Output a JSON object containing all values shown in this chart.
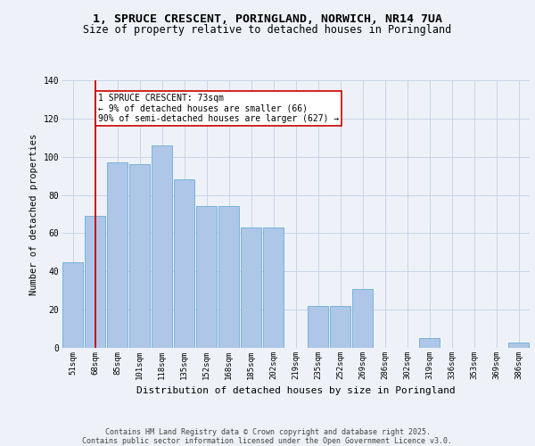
{
  "title_line1": "1, SPRUCE CRESCENT, PORINGLAND, NORWICH, NR14 7UA",
  "title_line2": "Size of property relative to detached houses in Poringland",
  "xlabel": "Distribution of detached houses by size in Poringland",
  "ylabel": "Number of detached properties",
  "categories": [
    "51sqm",
    "68sqm",
    "85sqm",
    "101sqm",
    "118sqm",
    "135sqm",
    "152sqm",
    "168sqm",
    "185sqm",
    "202sqm",
    "219sqm",
    "235sqm",
    "252sqm",
    "269sqm",
    "286sqm",
    "302sqm",
    "319sqm",
    "336sqm",
    "353sqm",
    "369sqm",
    "386sqm"
  ],
  "values": [
    45,
    69,
    97,
    96,
    106,
    88,
    74,
    74,
    63,
    63,
    0,
    22,
    22,
    31,
    0,
    0,
    5,
    0,
    0,
    0,
    3
  ],
  "bar_color": "#aec6e8",
  "bar_edge_color": "#6aaed6",
  "vline_x": 1,
  "vline_color": "#cc0000",
  "annotation_text": "1 SPRUCE CRESCENT: 73sqm\n← 9% of detached houses are smaller (66)\n90% of semi-detached houses are larger (627) →",
  "annotation_box_color": "#ffffff",
  "annotation_box_edge": "#cc0000",
  "ylim": [
    0,
    140
  ],
  "yticks": [
    0,
    20,
    40,
    60,
    80,
    100,
    120,
    140
  ],
  "footer_line1": "Contains HM Land Registry data © Crown copyright and database right 2025.",
  "footer_line2": "Contains public sector information licensed under the Open Government Licence v3.0.",
  "bg_color": "#eef2f8",
  "grid_color": "#c8d4e8",
  "title_fontsize": 9.5,
  "subtitle_fontsize": 8.5,
  "axis_label_fontsize": 8,
  "tick_fontsize": 6.5,
  "footer_fontsize": 6,
  "annot_fontsize": 7,
  "ylabel_fontsize": 7.5
}
